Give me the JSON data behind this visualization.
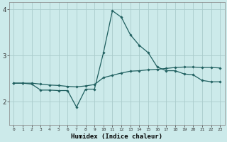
{
  "xlabel": "Humidex (Indice chaleur)",
  "x": [
    0,
    1,
    2,
    3,
    4,
    5,
    6,
    7,
    8,
    9,
    10,
    11,
    12,
    13,
    14,
    15,
    16,
    17,
    18,
    19,
    20,
    21,
    22,
    23
  ],
  "line1": [
    2.4,
    2.4,
    2.4,
    2.38,
    2.36,
    2.35,
    2.33,
    2.32,
    2.34,
    2.37,
    2.52,
    2.57,
    2.62,
    2.66,
    2.67,
    2.69,
    2.7,
    2.72,
    2.74,
    2.75,
    2.75,
    2.74,
    2.74,
    2.73
  ],
  "line2": [
    2.4,
    2.4,
    2.38,
    2.25,
    2.25,
    2.24,
    2.24,
    1.88,
    2.27,
    2.27,
    3.06,
    3.97,
    3.83,
    3.45,
    3.22,
    3.06,
    2.75,
    2.67,
    2.67,
    2.6,
    2.58,
    2.46,
    2.43,
    2.43
  ],
  "line_color": "#206060",
  "bg_color": "#cceaea",
  "grid_color": "#aacccc",
  "ylim": [
    1.5,
    4.15
  ],
  "yticks": [
    2,
    3,
    4
  ],
  "xlim": [
    -0.5,
    23.5
  ]
}
